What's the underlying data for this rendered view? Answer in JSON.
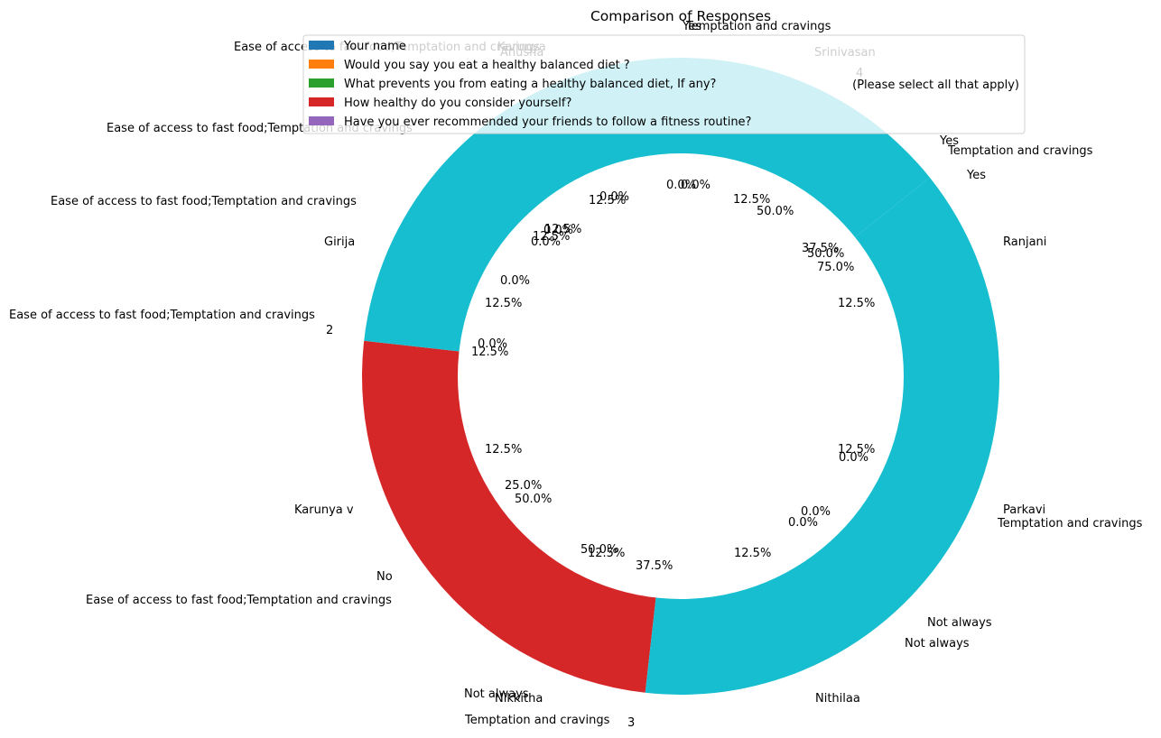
{
  "chart_data": {
    "type": "pie",
    "style": "donut",
    "title": "Comparison of Responses",
    "legend": {
      "placement": "top-center",
      "entries": [
        {
          "label": "Your name",
          "color": "#1f77b4"
        },
        {
          "label": "Would you say you eat a healthy balanced diet ?",
          "color": "#ff7f0e"
        },
        {
          "label": "What prevents you from eating a healthy balanced diet, If any?",
          "color": "#2ca02c"
        },
        {
          "label": "How healthy do you consider yourself?",
          "color": "#d62728"
        },
        {
          "label": "Have you ever recommended your friends to follow a fitness routine?",
          "color": "#9467bd"
        }
      ],
      "extra_note": "(Please select all that apply)"
    },
    "slices": [
      {
        "name": "cyan-upper",
        "value": 37.5,
        "color": "#17becf"
      },
      {
        "name": "red",
        "value": 25.0,
        "color": "#d62728"
      },
      {
        "name": "cyan-lower",
        "value": 37.5,
        "color": "#17becf"
      }
    ],
    "outer_labels": [
      "Temptation and cravings",
      "Yes",
      "Srinivasan",
      "4",
      "Yes",
      "Temptation and cravings",
      "Yes",
      "Ranjani",
      "Parkavi",
      "Temptation and cravings",
      "Not always",
      "Not always",
      "Nithilaa",
      "3",
      "Temptation and cravings",
      "Nikkitha",
      "Not always",
      "Ease of access to fast food;Temptation and cravings",
      "No",
      "Karunya v",
      "Ease of access to fast food;Temptation and cravings",
      "2",
      "Girija",
      "Ease of access to fast food;Temptation and cravings",
      "Ease of access to fast food;Temptation and cravings",
      "Ease of access to fast food;Temptation and cravings",
      "Anusha",
      "Karunya"
    ],
    "inner_labels": [
      "0.0%",
      "0.0%",
      "12.5%",
      "50.0%",
      "12.5%",
      "37.5%",
      "50.0%",
      "75.0%",
      "12.5%",
      "12.5%",
      "0.0%",
      "0.0%",
      "0.0%",
      "12.5%",
      "0.0%",
      "37.5%",
      "50.0%",
      "12.5%",
      "25.0%",
      "50.0%",
      "12.5%",
      "0.0%",
      "12.5%",
      "12.5%",
      "0.0%",
      "0.0%",
      "12.5%",
      "0.0%",
      "12.5%"
    ]
  }
}
